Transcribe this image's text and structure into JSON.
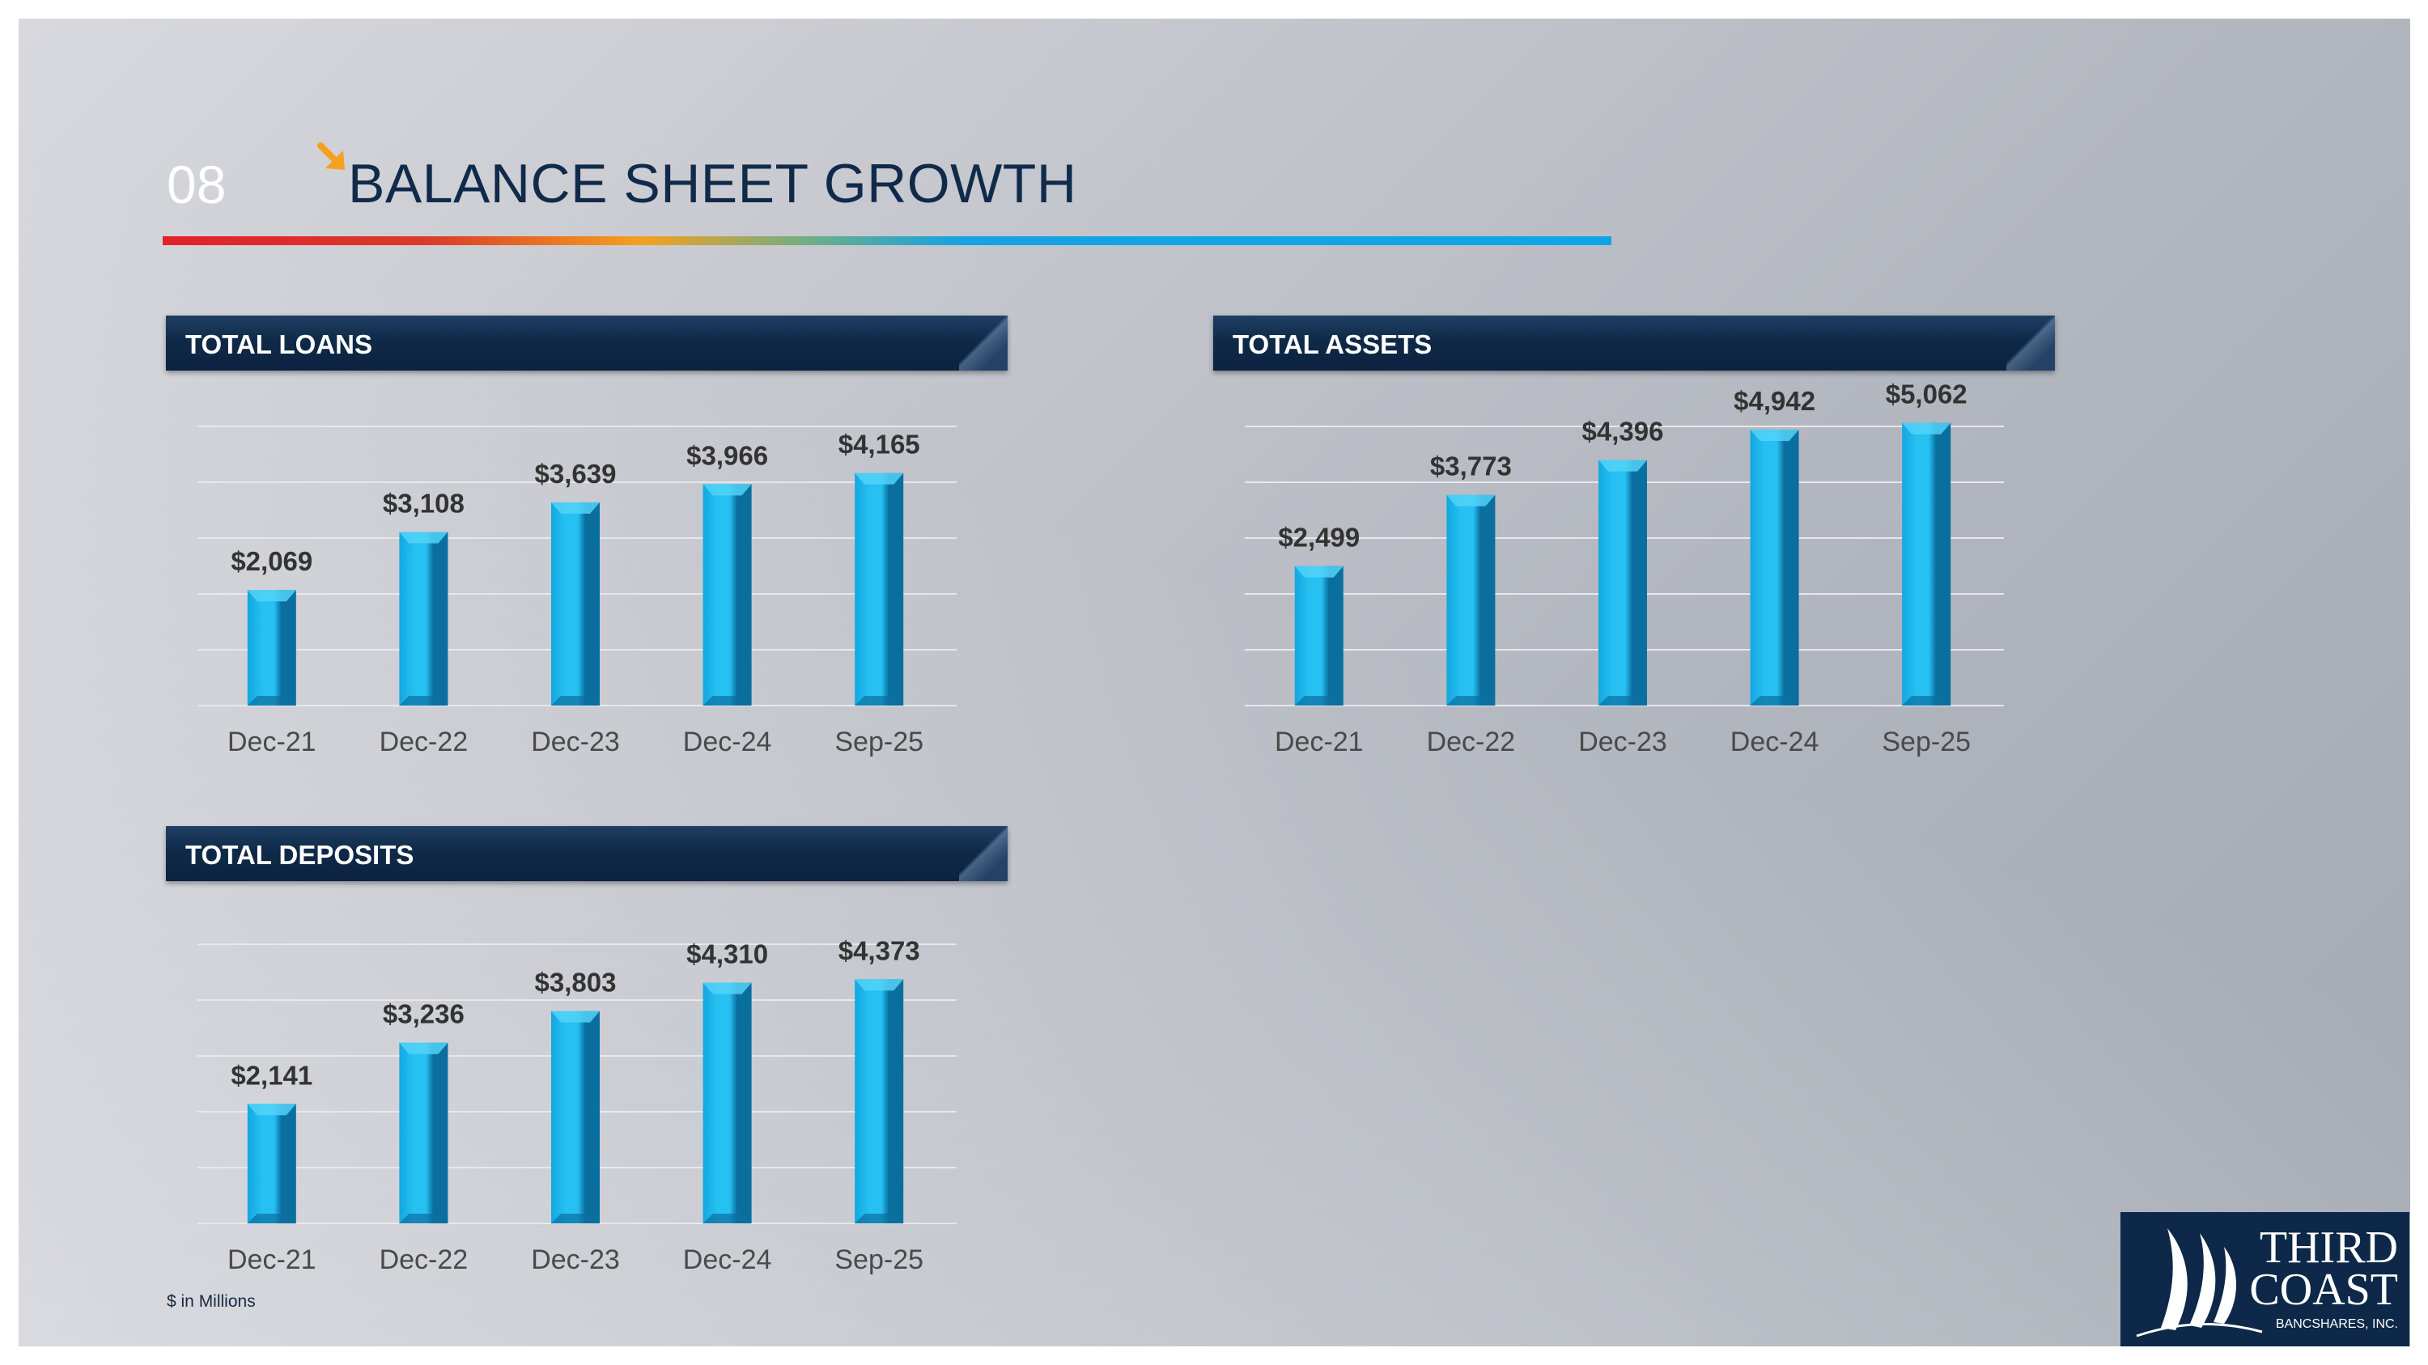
{
  "header": {
    "slide_number": "08",
    "title": "BALANCE SHEET GROWTH"
  },
  "colors": {
    "bar_light": "#26c0f2",
    "bar_mid": "#13a7e0",
    "bar_dark": "#0a6f9e",
    "grid": "#e6e8ec",
    "label": "#333333",
    "tick": "#4a4a4a",
    "header_bg": "#0f2a48",
    "accent_orange": "#f5a01e"
  },
  "chart_data": [
    {
      "type": "bar",
      "title": "TOTAL LOANS",
      "categories": [
        "Dec-21",
        "Dec-22",
        "Dec-23",
        "Dec-24",
        "Sep-25"
      ],
      "values": [
        2069,
        3108,
        3639,
        3966,
        4165
      ],
      "value_labels": [
        "$2,069",
        "$3,108",
        "$3,639",
        "$3,966",
        "$4,165"
      ],
      "xlabel": "",
      "ylabel": "",
      "ylim": [
        0,
        5000
      ],
      "grid": true,
      "legend": "none"
    },
    {
      "type": "bar",
      "title": "TOTAL ASSETS",
      "categories": [
        "Dec-21",
        "Dec-22",
        "Dec-23",
        "Dec-24",
        "Sep-25"
      ],
      "values": [
        2499,
        3773,
        4396,
        4942,
        5062
      ],
      "value_labels": [
        "$2,499",
        "$3,773",
        "$4,396",
        "$4,942",
        "$5,062"
      ],
      "xlabel": "",
      "ylabel": "",
      "ylim": [
        0,
        5000
      ],
      "grid": true,
      "legend": "none"
    },
    {
      "type": "bar",
      "title": "TOTAL DEPOSITS",
      "categories": [
        "Dec-21",
        "Dec-22",
        "Dec-23",
        "Dec-24",
        "Sep-25"
      ],
      "values": [
        2141,
        3236,
        3803,
        4310,
        4373
      ],
      "value_labels": [
        "$2,141",
        "$3,236",
        "$3,803",
        "$4,310",
        "$4,373"
      ],
      "xlabel": "",
      "ylabel": "",
      "ylim": [
        0,
        5000
      ],
      "grid": true,
      "legend": "none"
    }
  ],
  "footnote": "$ in Millions",
  "logo": {
    "line1": "THIRD",
    "line2": "COAST",
    "line3": "BANCSHARES, INC."
  }
}
